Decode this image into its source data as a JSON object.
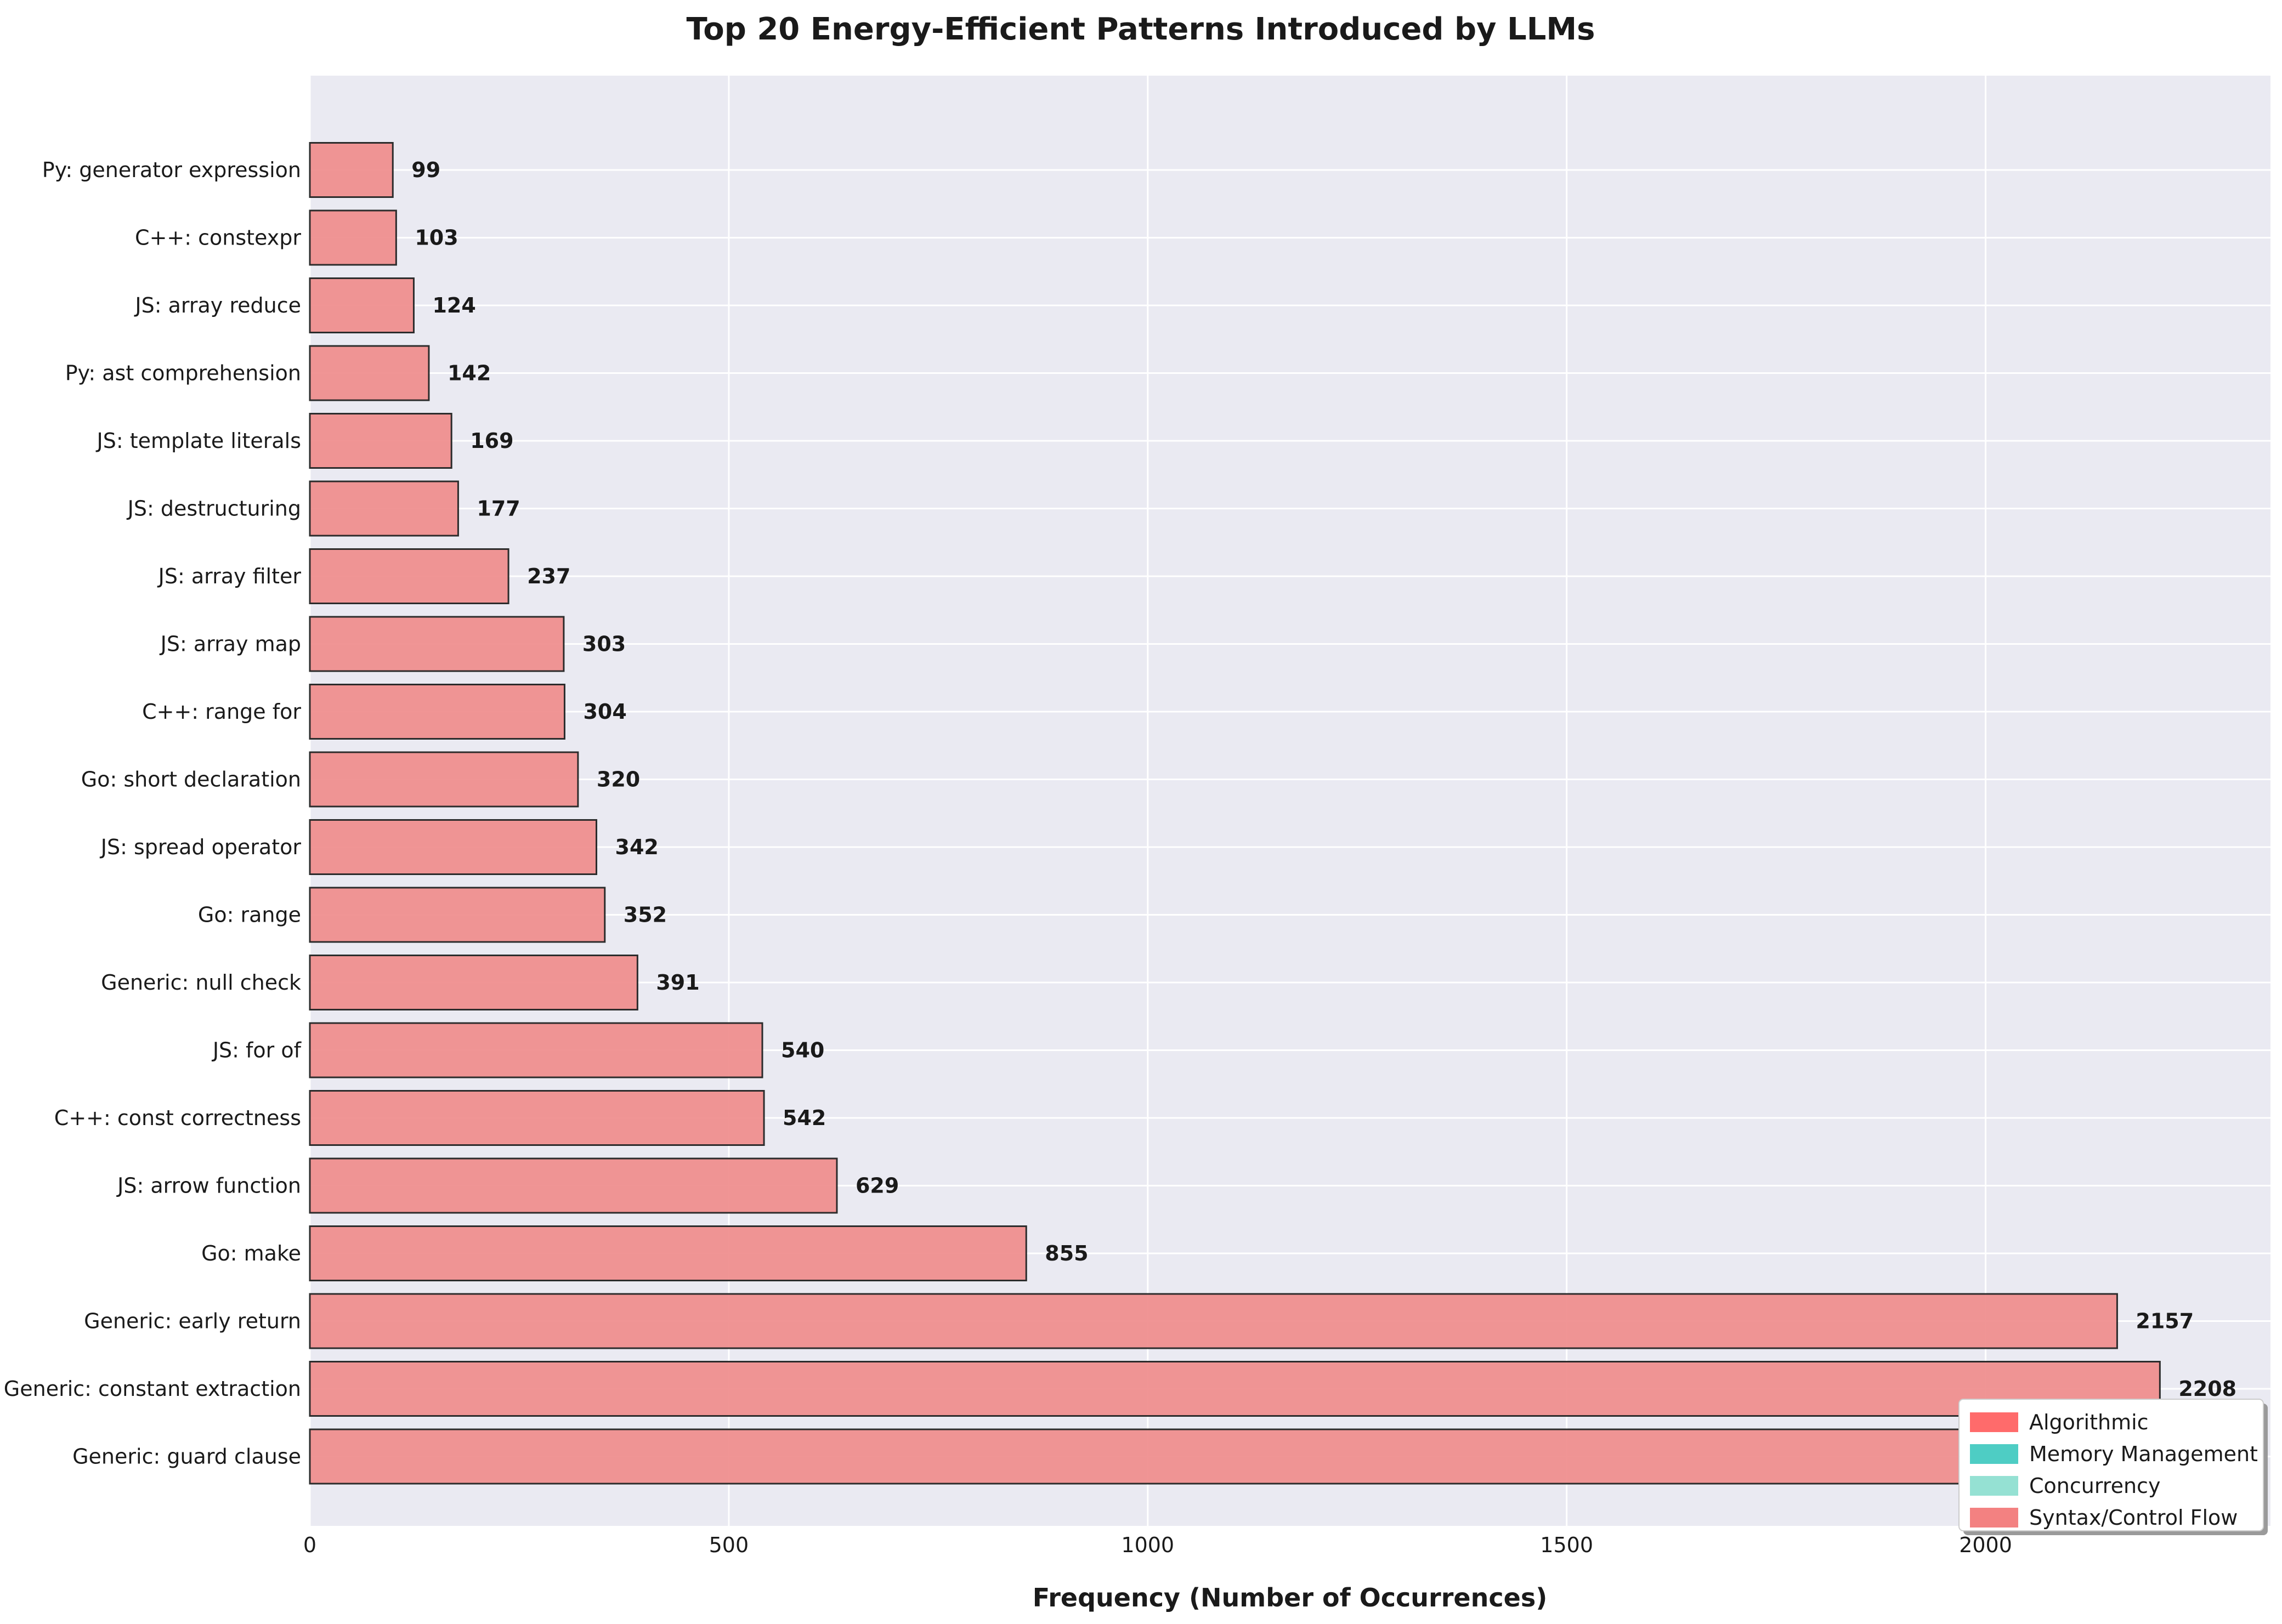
{
  "chart_data": {
    "type": "bar",
    "orientation": "horizontal",
    "title": "Top 20 Energy-Efficient Patterns Introduced by LLMs",
    "xlabel": "Frequency (Number of Occurrences)",
    "ylabel": "",
    "xlim": [
      0,
      2340
    ],
    "x_ticks": [
      0,
      500,
      1000,
      1500,
      2000
    ],
    "grid": true,
    "legend_position": "bottom-right",
    "bar_color": "#f09090",
    "bar_edge_color": "#222222",
    "plot_background": "#eaeaf2",
    "categories": [
      "Py: generator expression",
      "C++: constexpr",
      "JS: array reduce",
      "Py: ast comprehension",
      "JS: template literals",
      "JS: destructuring",
      "JS: array filter",
      "JS: array map",
      "C++: range for",
      "Go: short declaration",
      "JS: spread operator",
      "Go: range",
      "Generic: null check",
      "JS: for of",
      "C++: const correctness",
      "JS: arrow function",
      "Go: make",
      "Generic: early return",
      "Generic: constant extraction",
      "Generic: guard clause"
    ],
    "values": [
      99,
      103,
      124,
      142,
      169,
      177,
      237,
      303,
      304,
      320,
      342,
      352,
      391,
      540,
      542,
      629,
      855,
      2157,
      2208,
      2250
    ],
    "value_labels": [
      "99",
      "103",
      "124",
      "142",
      "169",
      "177",
      "237",
      "303",
      "304",
      "320",
      "342",
      "352",
      "391",
      "540",
      "542",
      "629",
      "855",
      "2157",
      "2208",
      ""
    ],
    "legend": [
      {
        "label": "Algorithmic",
        "color": "#ff6b6b"
      },
      {
        "label": "Memory Management",
        "color": "#4ecdc4"
      },
      {
        "label": "Concurrency",
        "color": "#95e1d3"
      },
      {
        "label": "Syntax/Control Flow",
        "color": "#f38181"
      }
    ]
  }
}
